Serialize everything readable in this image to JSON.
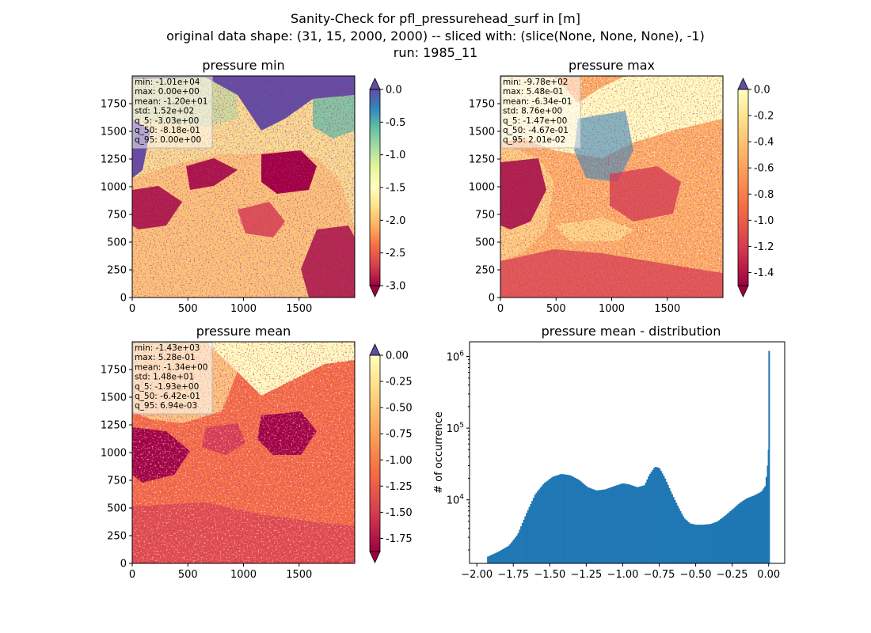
{
  "suptitle": {
    "line1": "Sanity-Check for pfl_pressurehead_surf in [m]",
    "line2": "original data shape: (31, 15, 2000, 2000) -- sliced with: (slice(None, None, None), -1)",
    "line3": "run: 1985_11"
  },
  "chart_data": [
    {
      "type": "heatmap",
      "title": "pressure min",
      "colormap": "Spectral",
      "xlim": [
        0,
        2000
      ],
      "ylim": [
        0,
        2000
      ],
      "xticks": [
        0,
        500,
        1000,
        1500
      ],
      "yticks": [
        0,
        250,
        500,
        750,
        1000,
        1250,
        1500,
        1750
      ],
      "colorbar": {
        "range": [
          -3.0,
          0.0
        ],
        "ticks": [
          "0.0",
          "-0.5",
          "-1.0",
          "-1.5",
          "-2.0",
          "-2.5",
          "-3.0"
        ],
        "extend": "both"
      },
      "stats": [
        "min: -1.01e+04",
        "max: 0.00e+00",
        "mean: -1.20e+01",
        "std: 1.52e+02",
        "q_5: -3.03e+00",
        "q_50: -8.18e-01",
        "q_95: 0.00e+00"
      ]
    },
    {
      "type": "heatmap",
      "title": "pressure max",
      "colormap": "Spectral",
      "xlim": [
        0,
        2000
      ],
      "ylim": [
        0,
        2000
      ],
      "xticks": [
        0,
        500,
        1000,
        1500
      ],
      "yticks": [
        0,
        250,
        500,
        750,
        1000,
        1250,
        1500,
        1750
      ],
      "colorbar": {
        "range": [
          -1.5,
          0.0
        ],
        "ticks": [
          "0.0",
          "-0.2",
          "-0.4",
          "-0.6",
          "-0.8",
          "-1.0",
          "-1.2",
          "-1.4"
        ],
        "extend": "both"
      },
      "stats": [
        "min: -9.78e+02",
        "max: 5.48e-01",
        "mean: -6.34e-01",
        "std: 8.76e+00",
        "q_5: -1.47e+00",
        "q_50: -4.67e-01",
        "q_95: 2.01e-02"
      ]
    },
    {
      "type": "heatmap",
      "title": "pressure mean",
      "colormap": "Spectral",
      "xlim": [
        0,
        2000
      ],
      "ylim": [
        0,
        2000
      ],
      "xticks": [
        0,
        500,
        1000,
        1500
      ],
      "yticks": [
        0,
        250,
        500,
        750,
        1000,
        1250,
        1500,
        1750
      ],
      "colorbar": {
        "range": [
          -1.875,
          0.0
        ],
        "ticks": [
          "0.00",
          "-0.25",
          "-0.50",
          "-0.75",
          "-1.00",
          "-1.25",
          "-1.50",
          "-1.75"
        ],
        "extend": "both"
      },
      "stats": [
        "min: -1.43e+03",
        "max: 5.28e-01",
        "mean: -1.34e+00",
        "std: 1.48e+01",
        "q_5: -1.93e+00",
        "q_50: -6.42e-01",
        "q_95: 6.94e-03"
      ]
    },
    {
      "type": "bar",
      "title": "pressure mean - distribution",
      "ylabel": "# of occurrence",
      "yscale": "log",
      "xlim": [
        -2.05,
        0.11
      ],
      "ylim": [
        1300,
        1600000
      ],
      "xticks": [
        "-2.00",
        "-1.75",
        "-1.50",
        "-1.25",
        "-1.00",
        "-0.75",
        "-0.50",
        "-0.25",
        "0.00"
      ],
      "yticks": [
        {
          "exp": "4",
          "value": 10000
        },
        {
          "exp": "5",
          "value": 100000
        },
        {
          "exp": "6",
          "value": 1000000
        }
      ],
      "color": "#1f77b4",
      "profile": [
        [
          -1.93,
          1600
        ],
        [
          -1.85,
          1900
        ],
        [
          -1.78,
          2300
        ],
        [
          -1.72,
          3300
        ],
        [
          -1.66,
          6500
        ],
        [
          -1.6,
          12000
        ],
        [
          -1.54,
          17000
        ],
        [
          -1.48,
          21000
        ],
        [
          -1.42,
          23000
        ],
        [
          -1.36,
          22000
        ],
        [
          -1.3,
          19000
        ],
        [
          -1.24,
          15000
        ],
        [
          -1.18,
          13500
        ],
        [
          -1.12,
          14000
        ],
        [
          -1.06,
          15500
        ],
        [
          -1.0,
          17000
        ],
        [
          -0.96,
          16500
        ],
        [
          -0.9,
          15000
        ],
        [
          -0.85,
          16000
        ],
        [
          -0.82,
          22000
        ],
        [
          -0.78,
          29000
        ],
        [
          -0.75,
          28000
        ],
        [
          -0.71,
          20000
        ],
        [
          -0.67,
          13000
        ],
        [
          -0.62,
          8000
        ],
        [
          -0.58,
          5600
        ],
        [
          -0.54,
          4700
        ],
        [
          -0.5,
          4500
        ],
        [
          -0.45,
          4500
        ],
        [
          -0.4,
          4600
        ],
        [
          -0.35,
          5000
        ],
        [
          -0.3,
          6000
        ],
        [
          -0.25,
          7300
        ],
        [
          -0.2,
          9000
        ],
        [
          -0.15,
          10500
        ],
        [
          -0.1,
          11500
        ],
        [
          -0.05,
          13000
        ],
        [
          -0.02,
          16000
        ],
        [
          -0.01,
          30000
        ],
        [
          0.0,
          1200000
        ]
      ]
    }
  ]
}
